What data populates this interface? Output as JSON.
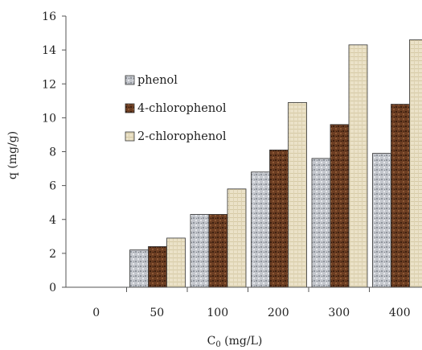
{
  "chart_data": {
    "type": "bar",
    "categories": [
      "0",
      "50",
      "100",
      "200",
      "300",
      "400"
    ],
    "series": [
      {
        "name": "phenol",
        "values": [
          0,
          2.2,
          4.3,
          6.8,
          7.6,
          7.9
        ]
      },
      {
        "name": "4-chlorophenol",
        "values": [
          0,
          2.4,
          4.3,
          8.1,
          9.6,
          10.8
        ]
      },
      {
        "name": "2-chlorophenol",
        "values": [
          0,
          2.9,
          5.8,
          10.9,
          14.3,
          14.6
        ]
      }
    ],
    "xlabel_main": "C",
    "xlabel_sub": "0",
    "xlabel_unit": " (mg/L)",
    "ylabel": "q (mg/g)",
    "ylim": [
      0,
      16
    ],
    "yticks": [
      0,
      2,
      4,
      6,
      8,
      10,
      12,
      14,
      16
    ],
    "grid": false,
    "legend_position": "left",
    "colors": {
      "phenol": "#c3c6cc",
      "4-chlorophenol": "#6b3d22",
      "2-chlorophenol": "#ebe2c8",
      "axis": "#555555"
    }
  }
}
